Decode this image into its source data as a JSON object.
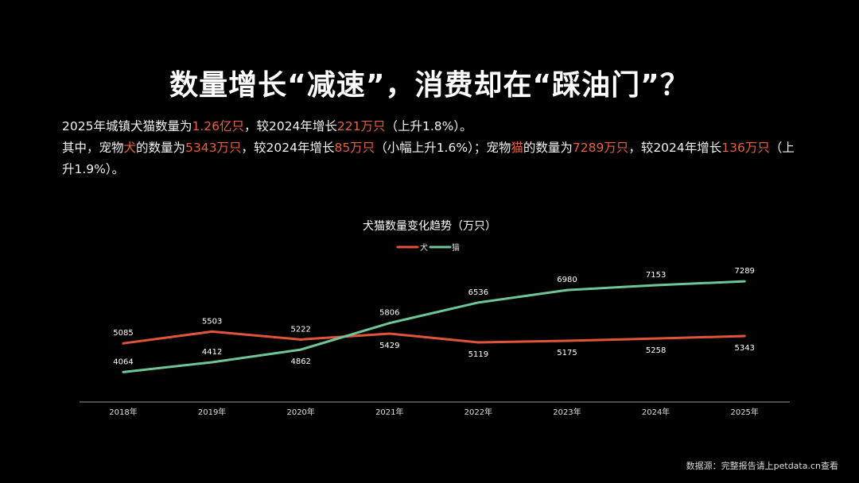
{
  "title": "数量增长“减速”，消费却在“踩油门”？",
  "paragraph": {
    "line1": [
      {
        "t": "2025年城镇犬猫数量为"
      },
      {
        "t": "1.26亿只",
        "hl": true
      },
      {
        "t": "，较2024年增长"
      },
      {
        "t": "221万只",
        "hl": true
      },
      {
        "t": "（上升1.8%）。"
      }
    ],
    "line2": [
      {
        "t": "其中，宠物"
      },
      {
        "t": "犬",
        "hl": true
      },
      {
        "t": "的数量为"
      },
      {
        "t": "5343万只",
        "hl": true
      },
      {
        "t": "，较2024年增长"
      },
      {
        "t": "85万只",
        "hl": true
      },
      {
        "t": "（小幅上升1.6%）；宠物"
      },
      {
        "t": "猫",
        "hl": true
      },
      {
        "t": "的数量为"
      },
      {
        "t": "7289万只",
        "hl": true
      },
      {
        "t": "，较2024年增长"
      },
      {
        "t": "136万只",
        "hl": true
      },
      {
        "t": "（上升1.9%）。"
      }
    ]
  },
  "colors": {
    "highlight": "#e8603c",
    "dog": "#e0553a",
    "cat": "#6fc597",
    "axis": "#999999"
  },
  "chart_data": {
    "type": "line",
    "title": "犬猫数量变化趋势（万只）",
    "categories": [
      "2018年",
      "2019年",
      "2020年",
      "2021年",
      "2022年",
      "2023年",
      "2024年",
      "2025年"
    ],
    "series": [
      {
        "name": "犬",
        "values": [
          5085,
          5503,
          5222,
          5429,
          5119,
          5175,
          5258,
          5343
        ]
      },
      {
        "name": "猫",
        "values": [
          4064,
          4412,
          4862,
          5806,
          6536,
          6980,
          7153,
          7289
        ]
      }
    ],
    "ylim": [
      3000,
      8000
    ],
    "grid": false,
    "legend": "top-center",
    "data_labels": true
  },
  "footer": "数据源：完整报告请上petdata.cn查看"
}
